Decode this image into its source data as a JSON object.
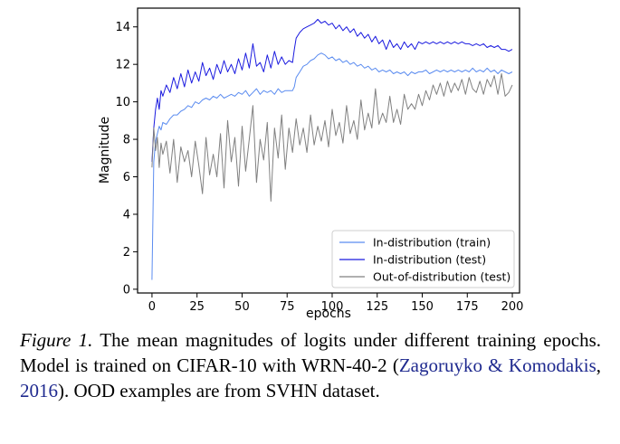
{
  "chart_data": {
    "type": "line",
    "xlabel": "epochs",
    "ylabel": "Magnitude",
    "xlim": [
      -8,
      204
    ],
    "ylim": [
      -0.2,
      15
    ],
    "xticks": [
      0,
      25,
      50,
      75,
      100,
      125,
      150,
      175,
      200
    ],
    "yticks": [
      0,
      2,
      4,
      6,
      8,
      10,
      12,
      14
    ],
    "legend": "lower-right",
    "grid": false,
    "series": [
      {
        "name": "In-distribution (train)",
        "color": "#5b8cf0",
        "points": [
          [
            0,
            0.5
          ],
          [
            1,
            6.8
          ],
          [
            2,
            7.9
          ],
          [
            3,
            8.3
          ],
          [
            4,
            8.7
          ],
          [
            5,
            8.5
          ],
          [
            6,
            8.9
          ],
          [
            8,
            8.8
          ],
          [
            10,
            9.1
          ],
          [
            12,
            9.3
          ],
          [
            14,
            9.3
          ],
          [
            16,
            9.5
          ],
          [
            18,
            9.6
          ],
          [
            20,
            9.8
          ],
          [
            22,
            9.7
          ],
          [
            24,
            10.0
          ],
          [
            26,
            9.9
          ],
          [
            28,
            10.1
          ],
          [
            30,
            10.2
          ],
          [
            32,
            10.1
          ],
          [
            34,
            10.3
          ],
          [
            36,
            10.2
          ],
          [
            38,
            10.4
          ],
          [
            40,
            10.2
          ],
          [
            42,
            10.3
          ],
          [
            44,
            10.4
          ],
          [
            46,
            10.3
          ],
          [
            48,
            10.5
          ],
          [
            50,
            10.4
          ],
          [
            52,
            10.6
          ],
          [
            54,
            10.3
          ],
          [
            56,
            10.5
          ],
          [
            58,
            10.7
          ],
          [
            60,
            10.4
          ],
          [
            62,
            10.6
          ],
          [
            64,
            10.5
          ],
          [
            66,
            10.6
          ],
          [
            68,
            10.4
          ],
          [
            70,
            10.7
          ],
          [
            72,
            10.5
          ],
          [
            74,
            10.6
          ],
          [
            76,
            10.6
          ],
          [
            78,
            10.6
          ],
          [
            79,
            10.8
          ],
          [
            80,
            11.3
          ],
          [
            82,
            11.6
          ],
          [
            84,
            11.9
          ],
          [
            86,
            12.0
          ],
          [
            88,
            12.2
          ],
          [
            90,
            12.3
          ],
          [
            92,
            12.5
          ],
          [
            94,
            12.6
          ],
          [
            96,
            12.5
          ],
          [
            98,
            12.3
          ],
          [
            100,
            12.4
          ],
          [
            102,
            12.2
          ],
          [
            104,
            12.3
          ],
          [
            106,
            12.1
          ],
          [
            108,
            12.2
          ],
          [
            110,
            12.0
          ],
          [
            112,
            12.1
          ],
          [
            114,
            11.9
          ],
          [
            116,
            12.0
          ],
          [
            118,
            11.8
          ],
          [
            120,
            11.9
          ],
          [
            122,
            11.7
          ],
          [
            124,
            11.8
          ],
          [
            126,
            11.6
          ],
          [
            128,
            11.7
          ],
          [
            130,
            11.6
          ],
          [
            132,
            11.7
          ],
          [
            134,
            11.5
          ],
          [
            136,
            11.6
          ],
          [
            138,
            11.5
          ],
          [
            140,
            11.6
          ],
          [
            142,
            11.4
          ],
          [
            144,
            11.6
          ],
          [
            146,
            11.5
          ],
          [
            148,
            11.6
          ],
          [
            150,
            11.6
          ],
          [
            152,
            11.7
          ],
          [
            154,
            11.5
          ],
          [
            156,
            11.6
          ],
          [
            158,
            11.7
          ],
          [
            160,
            11.6
          ],
          [
            162,
            11.7
          ],
          [
            164,
            11.6
          ],
          [
            166,
            11.7
          ],
          [
            168,
            11.6
          ],
          [
            170,
            11.7
          ],
          [
            172,
            11.6
          ],
          [
            174,
            11.7
          ],
          [
            176,
            11.6
          ],
          [
            178,
            11.8
          ],
          [
            180,
            11.6
          ],
          [
            182,
            11.7
          ],
          [
            184,
            11.6
          ],
          [
            186,
            11.8
          ],
          [
            188,
            11.6
          ],
          [
            190,
            11.7
          ],
          [
            192,
            11.5
          ],
          [
            194,
            11.7
          ],
          [
            196,
            11.6
          ],
          [
            198,
            11.5
          ],
          [
            200,
            11.6
          ]
        ]
      },
      {
        "name": "In-distribution (test)",
        "color": "#1a1adf",
        "points": [
          [
            0,
            6.8
          ],
          [
            1,
            8.6
          ],
          [
            2,
            9.6
          ],
          [
            3,
            10.2
          ],
          [
            4,
            9.6
          ],
          [
            5,
            10.6
          ],
          [
            6,
            10.3
          ],
          [
            8,
            10.9
          ],
          [
            10,
            10.5
          ],
          [
            12,
            11.3
          ],
          [
            14,
            10.7
          ],
          [
            16,
            11.5
          ],
          [
            18,
            10.8
          ],
          [
            20,
            11.7
          ],
          [
            22,
            11.0
          ],
          [
            24,
            11.6
          ],
          [
            26,
            11.1
          ],
          [
            28,
            12.1
          ],
          [
            30,
            11.4
          ],
          [
            32,
            11.8
          ],
          [
            34,
            11.2
          ],
          [
            36,
            12.0
          ],
          [
            38,
            11.5
          ],
          [
            40,
            12.2
          ],
          [
            42,
            11.6
          ],
          [
            44,
            12.0
          ],
          [
            46,
            11.5
          ],
          [
            48,
            12.3
          ],
          [
            50,
            11.7
          ],
          [
            52,
            12.6
          ],
          [
            54,
            11.8
          ],
          [
            56,
            13.1
          ],
          [
            58,
            11.9
          ],
          [
            60,
            12.1
          ],
          [
            62,
            11.6
          ],
          [
            64,
            12.5
          ],
          [
            66,
            11.8
          ],
          [
            68,
            12.7
          ],
          [
            70,
            12.0
          ],
          [
            72,
            12.4
          ],
          [
            74,
            12.0
          ],
          [
            76,
            12.2
          ],
          [
            78,
            12.1
          ],
          [
            79,
            12.8
          ],
          [
            80,
            13.4
          ],
          [
            82,
            13.7
          ],
          [
            84,
            13.9
          ],
          [
            86,
            14.0
          ],
          [
            88,
            14.1
          ],
          [
            90,
            14.2
          ],
          [
            92,
            14.4
          ],
          [
            94,
            14.2
          ],
          [
            96,
            14.3
          ],
          [
            98,
            14.1
          ],
          [
            100,
            14.2
          ],
          [
            102,
            13.9
          ],
          [
            104,
            14.1
          ],
          [
            106,
            13.8
          ],
          [
            108,
            14.0
          ],
          [
            110,
            13.7
          ],
          [
            112,
            13.9
          ],
          [
            114,
            13.5
          ],
          [
            116,
            13.7
          ],
          [
            118,
            13.4
          ],
          [
            120,
            13.6
          ],
          [
            122,
            13.2
          ],
          [
            124,
            13.5
          ],
          [
            126,
            13.1
          ],
          [
            128,
            13.3
          ],
          [
            130,
            12.8
          ],
          [
            132,
            13.3
          ],
          [
            134,
            12.9
          ],
          [
            136,
            13.1
          ],
          [
            138,
            12.8
          ],
          [
            140,
            13.2
          ],
          [
            142,
            12.9
          ],
          [
            144,
            13.1
          ],
          [
            146,
            12.8
          ],
          [
            148,
            13.2
          ],
          [
            150,
            13.1
          ],
          [
            152,
            13.2
          ],
          [
            154,
            13.1
          ],
          [
            156,
            13.2
          ],
          [
            158,
            13.1
          ],
          [
            160,
            13.2
          ],
          [
            162,
            13.1
          ],
          [
            164,
            13.2
          ],
          [
            166,
            13.1
          ],
          [
            168,
            13.2
          ],
          [
            170,
            13.1
          ],
          [
            172,
            13.2
          ],
          [
            174,
            13.1
          ],
          [
            176,
            13.1
          ],
          [
            178,
            13.0
          ],
          [
            180,
            13.1
          ],
          [
            182,
            13.0
          ],
          [
            184,
            13.1
          ],
          [
            186,
            12.9
          ],
          [
            188,
            13.0
          ],
          [
            190,
            12.9
          ],
          [
            192,
            13.0
          ],
          [
            194,
            12.8
          ],
          [
            196,
            12.8
          ],
          [
            198,
            12.7
          ],
          [
            200,
            12.8
          ]
        ]
      },
      {
        "name": "Out-of-distribution (test)",
        "color": "#808080",
        "points": [
          [
            0,
            6.5
          ],
          [
            1,
            8.6
          ],
          [
            2,
            7.4
          ],
          [
            3,
            8.1
          ],
          [
            4,
            6.5
          ],
          [
            5,
            7.8
          ],
          [
            6,
            7.2
          ],
          [
            8,
            7.9
          ],
          [
            10,
            6.2
          ],
          [
            12,
            8.0
          ],
          [
            14,
            5.7
          ],
          [
            16,
            7.6
          ],
          [
            18,
            6.8
          ],
          [
            20,
            7.4
          ],
          [
            22,
            6.0
          ],
          [
            24,
            7.9
          ],
          [
            26,
            6.6
          ],
          [
            28,
            5.1
          ],
          [
            30,
            8.1
          ],
          [
            32,
            6.1
          ],
          [
            34,
            7.2
          ],
          [
            36,
            6.0
          ],
          [
            38,
            8.3
          ],
          [
            40,
            5.4
          ],
          [
            42,
            9.0
          ],
          [
            44,
            6.8
          ],
          [
            46,
            8.1
          ],
          [
            48,
            5.5
          ],
          [
            50,
            8.7
          ],
          [
            52,
            6.3
          ],
          [
            54,
            8.0
          ],
          [
            56,
            9.8
          ],
          [
            58,
            5.7
          ],
          [
            60,
            8.0
          ],
          [
            62,
            6.9
          ],
          [
            64,
            8.9
          ],
          [
            66,
            4.7
          ],
          [
            68,
            8.6
          ],
          [
            70,
            7.0
          ],
          [
            72,
            9.3
          ],
          [
            74,
            6.4
          ],
          [
            76,
            8.6
          ],
          [
            78,
            7.3
          ],
          [
            80,
            9.1
          ],
          [
            82,
            7.7
          ],
          [
            84,
            8.6
          ],
          [
            86,
            7.3
          ],
          [
            88,
            9.3
          ],
          [
            90,
            7.7
          ],
          [
            92,
            8.7
          ],
          [
            94,
            7.9
          ],
          [
            96,
            9.0
          ],
          [
            98,
            7.6
          ],
          [
            100,
            9.6
          ],
          [
            102,
            8.2
          ],
          [
            104,
            8.9
          ],
          [
            106,
            7.8
          ],
          [
            108,
            9.8
          ],
          [
            110,
            8.3
          ],
          [
            112,
            9.0
          ],
          [
            114,
            8.0
          ],
          [
            116,
            10.1
          ],
          [
            118,
            8.5
          ],
          [
            120,
            9.4
          ],
          [
            122,
            8.6
          ],
          [
            124,
            10.7
          ],
          [
            126,
            8.8
          ],
          [
            128,
            9.4
          ],
          [
            130,
            8.9
          ],
          [
            132,
            10.3
          ],
          [
            134,
            8.9
          ],
          [
            136,
            9.6
          ],
          [
            138,
            8.8
          ],
          [
            140,
            10.4
          ],
          [
            142,
            9.6
          ],
          [
            144,
            9.9
          ],
          [
            146,
            9.6
          ],
          [
            148,
            10.4
          ],
          [
            150,
            9.8
          ],
          [
            152,
            10.6
          ],
          [
            154,
            10.1
          ],
          [
            156,
            10.9
          ],
          [
            158,
            10.4
          ],
          [
            160,
            11.0
          ],
          [
            162,
            10.3
          ],
          [
            164,
            11.1
          ],
          [
            166,
            10.5
          ],
          [
            168,
            11.0
          ],
          [
            170,
            10.6
          ],
          [
            172,
            11.2
          ],
          [
            174,
            10.4
          ],
          [
            176,
            11.3
          ],
          [
            178,
            10.7
          ],
          [
            180,
            10.5
          ],
          [
            182,
            11.1
          ],
          [
            184,
            10.4
          ],
          [
            186,
            11.2
          ],
          [
            188,
            10.8
          ],
          [
            190,
            11.4
          ],
          [
            192,
            10.4
          ],
          [
            194,
            11.5
          ],
          [
            196,
            10.3
          ],
          [
            198,
            10.5
          ],
          [
            200,
            10.9
          ]
        ]
      }
    ]
  },
  "caption": {
    "figure_label": "Figure 1.",
    "text_1": " The mean magnitudes of logits under different training epochs.  Model is trained on CIFAR-10 with WRN-40-2 (",
    "citation_authors": "Zagoruyko & Komodakis",
    "text_2": ", ",
    "citation_year": "2016",
    "text_3": ").  OOD examples are from SVHN dataset."
  }
}
